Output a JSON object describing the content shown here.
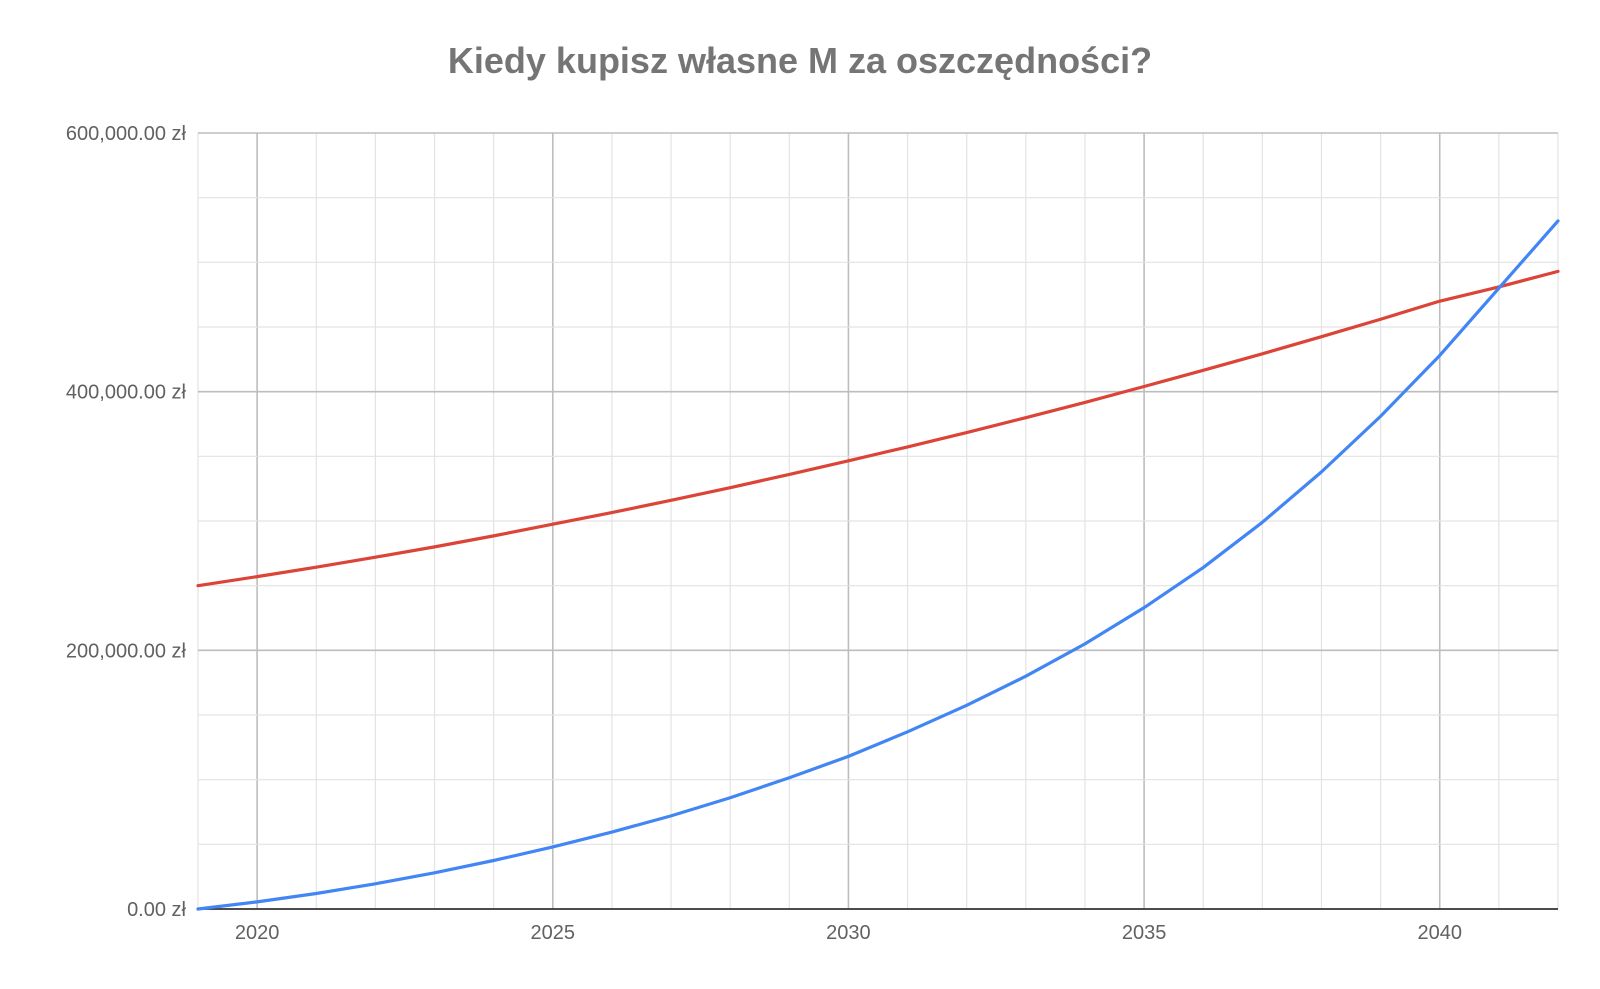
{
  "chart_data": {
    "type": "line",
    "title": "Kiedy kupisz własne M za oszczędności?",
    "xlabel": "",
    "ylabel": "",
    "xlim": [
      2019,
      2042
    ],
    "ylim": [
      0,
      600000
    ],
    "x_ticks": [
      "2020",
      "2025",
      "2030",
      "2035",
      "2040"
    ],
    "y_ticks": [
      "0.00 zł",
      "200,000.00 zł",
      "400,000.00 zł",
      "600,000.00 zł"
    ],
    "grid": true,
    "legend": "none",
    "x": [
      2019,
      2020,
      2021,
      2022,
      2023,
      2024,
      2025,
      2026,
      2027,
      2028,
      2029,
      2030,
      2031,
      2032,
      2033,
      2034,
      2035,
      2036,
      2037,
      2038,
      2039,
      2040,
      2041,
      2042
    ],
    "series": [
      {
        "color": "#db4437",
        "values": [
          250000,
          257000,
          264300,
          272000,
          280000,
          288500,
          297500,
          306500,
          316000,
          325800,
          336000,
          346500,
          357300,
          368400,
          379900,
          391700,
          404000,
          416500,
          429300,
          442500,
          456000,
          470000,
          481000,
          493000
        ]
      },
      {
        "color": "#4285f4",
        "values": [
          0,
          5500,
          12000,
          19500,
          28000,
          37500,
          48000,
          59500,
          72000,
          86000,
          101500,
          118000,
          137000,
          157500,
          180000,
          205000,
          233000,
          264000,
          299000,
          338000,
          381000,
          428000,
          480000,
          532000
        ]
      }
    ]
  }
}
